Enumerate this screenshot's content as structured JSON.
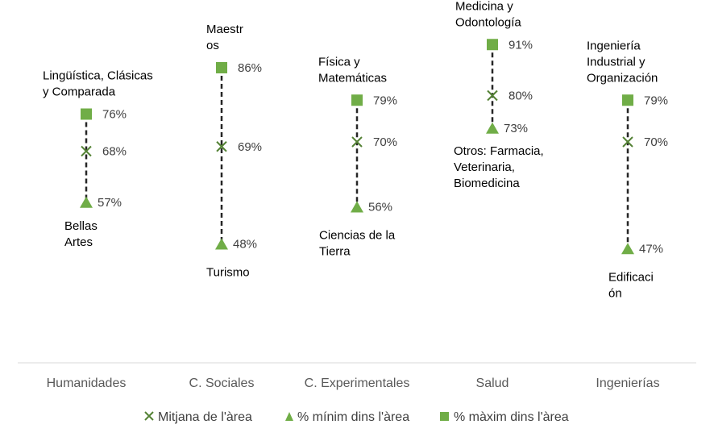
{
  "chart_data": {
    "type": "scatter",
    "categories": [
      "Humanidades",
      "C. Sociales",
      "C. Experimentales",
      "Salud",
      "Ingenierías"
    ],
    "series": [
      {
        "name": "Mitjana de l'àrea",
        "marker": "x",
        "values": [
          68,
          69,
          70,
          80,
          70
        ]
      },
      {
        "name": "% mínim dins l'àrea",
        "marker": "triangle",
        "values": [
          57,
          48,
          56,
          73,
          47
        ]
      },
      {
        "name": "% màxim dins l'àrea",
        "marker": "square",
        "values": [
          76,
          86,
          79,
          91,
          79
        ]
      }
    ],
    "value_labels": {
      "mean": [
        "68%",
        "69%",
        "70%",
        "80%",
        "70%"
      ],
      "min": [
        "57%",
        "48%",
        "56%",
        "73%",
        "47%"
      ],
      "max": [
        "76%",
        "86%",
        "79%",
        "91%",
        "79%"
      ]
    },
    "max_labels": [
      [
        "Lingüística, Clásicas",
        "y Comparada"
      ],
      [
        "Maestr",
        "os"
      ],
      [
        "Física y",
        "Matemáticas"
      ],
      [
        "Medicina y",
        "Odontología"
      ],
      [
        "Ingeniería",
        "Industrial y",
        "Organización"
      ]
    ],
    "min_labels": [
      [
        "Bellas",
        "Artes"
      ],
      [
        "Turismo"
      ],
      [
        "Ciencias de la",
        "Tierra"
      ],
      [
        "Otros: Farmacia,",
        "Veterinaria,",
        "Biomedicina"
      ],
      [
        "Edificaci",
        "ón"
      ]
    ],
    "legend": [
      "Mitjana de l'àrea",
      "% mínim dins l'àrea",
      "% màxim dins l'àrea"
    ],
    "legend_position": "bottom",
    "title": "",
    "xlabel": "",
    "ylabel": "",
    "grid": false,
    "colors": {
      "marker": "#70ad47",
      "mean_marker": "#548235",
      "connector": "#262626",
      "axis": "#d9d9d9"
    }
  }
}
